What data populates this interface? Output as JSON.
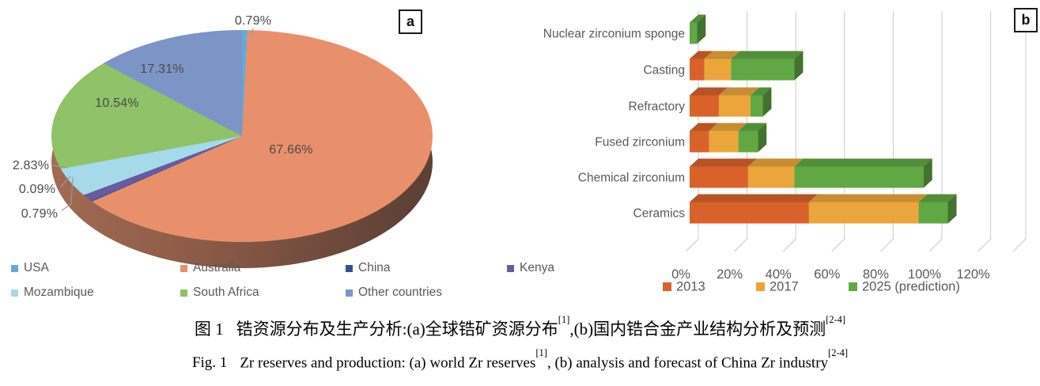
{
  "panels": {
    "a": "a",
    "b": "b"
  },
  "chart_data": [
    {
      "id": "world-zr-reserves-pie",
      "type": "pie",
      "unit": "%",
      "slices": [
        {
          "label": "USA",
          "value": 0.79,
          "pct_label": "0.79%",
          "color": "#64A9DC"
        },
        {
          "label": "Australia",
          "value": 67.66,
          "pct_label": "67.66%",
          "color": "#E8906C"
        },
        {
          "label": "China",
          "value": 0.09,
          "pct_label": "0.09%",
          "color": "#2F5597"
        },
        {
          "label": "Kenya",
          "value": 0.79,
          "pct_label": "0.79%",
          "color": "#6A5AA0"
        },
        {
          "label": "Mozambique",
          "value": 2.83,
          "pct_label": "2.83%",
          "color": "#A6DAEA"
        },
        {
          "label": "South Africa",
          "value": 10.54,
          "pct_label": "10.54%",
          "color": "#8FC269"
        },
        {
          "label": "Other countries",
          "value": 17.31,
          "pct_label": "17.31%",
          "color": "#7C95C6"
        }
      ],
      "effect": "3d",
      "side_colors": {
        "left": "#A26B53",
        "right": "#5E4136"
      },
      "legend_position": "bottom"
    },
    {
      "id": "china-zr-industry-bars",
      "type": "bar",
      "orientation": "horizontal",
      "stacked": true,
      "effect": "3d",
      "categories": [
        "Nuclear zirconium sponge",
        "Casting",
        "Refractory",
        "Fused zirconium",
        "Chemical zirconium",
        "Ceramics"
      ],
      "series": [
        {
          "name": "2013",
          "color": "#D9622B",
          "values": [
            0,
            6,
            12,
            8,
            24,
            49
          ]
        },
        {
          "name": "2017",
          "color": "#EAA63B",
          "values": [
            0,
            11,
            13,
            12,
            19,
            45
          ]
        },
        {
          "name": "2025 (prediction)",
          "color": "#61A744",
          "values": [
            3,
            26,
            5,
            8,
            53,
            12
          ]
        }
      ],
      "xlim": [
        0,
        120
      ],
      "tick_labels": [
        "0%",
        "20%",
        "40%",
        "60%",
        "80%",
        "100%",
        "120%"
      ],
      "grid": true,
      "legend_position": "bottom"
    }
  ],
  "caption": {
    "zh": {
      "fig": "图 1",
      "part1": "锆资源分布及生产分析:(a)全球锆矿资源分布",
      "sup1": "[1]",
      "part2": ",(b)国内锆合金产业结构分析及预测",
      "sup2": "[2-4]"
    },
    "en": {
      "fig": "Fig. 1",
      "part1": "Zr reserves and production: (a) world Zr reserves",
      "sup1": "[1]",
      "part2": ", (b) analysis and forecast of China Zr industry",
      "sup2": "[2-4]"
    }
  }
}
